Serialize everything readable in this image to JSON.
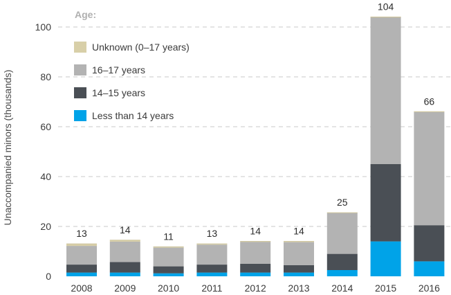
{
  "chart_data": {
    "type": "bar",
    "stacked": true,
    "categories": [
      "2008",
      "2009",
      "2010",
      "2011",
      "2012",
      "2013",
      "2014",
      "2015",
      "2016"
    ],
    "legend_title": "Age:",
    "series": [
      {
        "name": "Less than 14 years",
        "color": "#00a3e8",
        "values": [
          1.5,
          1.5,
          1.2,
          1.5,
          1.5,
          1.5,
          2.5,
          14,
          6
        ]
      },
      {
        "name": "14–15 years",
        "color": "#4a4f55",
        "values": [
          3.2,
          4.2,
          2.8,
          3.2,
          3.5,
          3.0,
          6.5,
          31,
          14.5
        ]
      },
      {
        "name": "16–17 years",
        "color": "#b3b3b3",
        "values": [
          7.5,
          8.2,
          7.5,
          8.0,
          8.8,
          9.2,
          16.5,
          59,
          45.5
        ]
      },
      {
        "name": "Unknown (0–17 years)",
        "color": "#d8cfa8",
        "values": [
          0.8,
          0.6,
          0.3,
          0.3,
          0.2,
          0.3,
          0,
          0,
          0
        ]
      }
    ],
    "legend_order": [
      "Unknown (0–17 years)",
      "16–17 years",
      "14–15 years",
      "Less than 14 years"
    ],
    "totals": [
      "13",
      "14",
      "11",
      "13",
      "14",
      "14",
      "25",
      "104",
      "66"
    ],
    "ylabel": "Unaccompanied minors (thousands)",
    "xlabel": "",
    "title": "",
    "ylim": [
      0,
      104
    ],
    "yticks": [
      0,
      20,
      40,
      60,
      80,
      100
    ],
    "grid": "horizontal dashed",
    "legend_position": "top-left"
  }
}
